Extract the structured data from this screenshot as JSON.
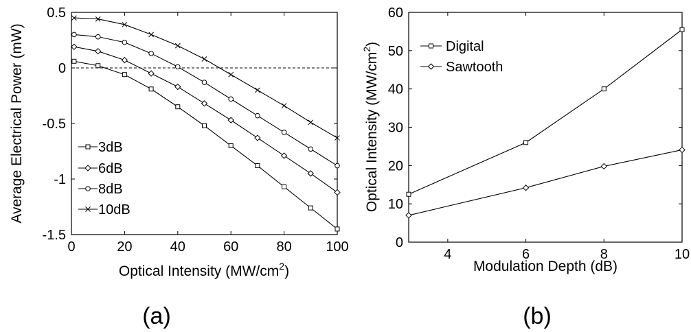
{
  "chart_data": [
    {
      "type": "line",
      "panel_label": "(a)",
      "xlabel": "Optical Intensity (MW/cm",
      "xlabel_sup": "2",
      "xlabel_tail": ")",
      "ylabel": "Average Electrical Power (mW)",
      "xlim": [
        0,
        100
      ],
      "ylim": [
        -1.5,
        0.5
      ],
      "xticks": [
        "0",
        "20",
        "40",
        "60",
        "80",
        "100"
      ],
      "xtick_values": [
        0,
        20,
        40,
        60,
        80,
        100
      ],
      "yticks": [
        "0.5",
        "0",
        "-0.5",
        "-1",
        "-1.5"
      ],
      "ytick_values": [
        0.5,
        0,
        -0.5,
        -1,
        -1.5
      ],
      "reference_line": {
        "y": 0,
        "style": "dashed"
      },
      "grid": false,
      "legend_position": "left-center",
      "x": [
        1,
        10,
        20,
        30,
        40,
        50,
        60,
        70,
        80,
        90,
        100
      ],
      "series": [
        {
          "name": "3dB",
          "marker": "square",
          "values": [
            0.06,
            0.02,
            -0.06,
            -0.19,
            -0.35,
            -0.52,
            -0.7,
            -0.88,
            -1.07,
            -1.26,
            -1.45
          ]
        },
        {
          "name": "6dB",
          "marker": "diamond",
          "values": [
            0.19,
            0.15,
            0.07,
            -0.05,
            -0.17,
            -0.32,
            -0.47,
            -0.63,
            -0.79,
            -0.95,
            -1.12
          ]
        },
        {
          "name": "8dB",
          "marker": "circle",
          "values": [
            0.3,
            0.28,
            0.23,
            0.13,
            0.01,
            -0.13,
            -0.28,
            -0.43,
            -0.58,
            -0.73,
            -0.88
          ]
        },
        {
          "name": "10dB",
          "marker": "x",
          "values": [
            0.45,
            0.44,
            0.39,
            0.3,
            0.2,
            0.08,
            -0.06,
            -0.2,
            -0.34,
            -0.49,
            -0.63
          ]
        }
      ]
    },
    {
      "type": "line",
      "panel_label": "(b)",
      "xlabel": "Modulation Depth (dB)",
      "ylabel": "Optical Intensity (MW/cm",
      "ylabel_sup": "2",
      "ylabel_tail": ")",
      "xlim": [
        3,
        10
      ],
      "ylim": [
        0,
        60
      ],
      "xticks": [
        "4",
        "6",
        "8",
        "10"
      ],
      "xtick_values": [
        4,
        6,
        8,
        10
      ],
      "yticks": [
        "60",
        "50",
        "40",
        "30",
        "20",
        "10",
        "0"
      ],
      "ytick_values": [
        60,
        50,
        40,
        30,
        20,
        10,
        0
      ],
      "grid": false,
      "legend_position": "top-left",
      "x": [
        3,
        6,
        8,
        10
      ],
      "series": [
        {
          "name": "Digital",
          "marker": "square",
          "values": [
            12.5,
            26,
            40,
            55.5
          ]
        },
        {
          "name": "Sawtooth",
          "marker": "diamond",
          "values": [
            7,
            14.2,
            19.8,
            24.1
          ]
        }
      ]
    }
  ]
}
